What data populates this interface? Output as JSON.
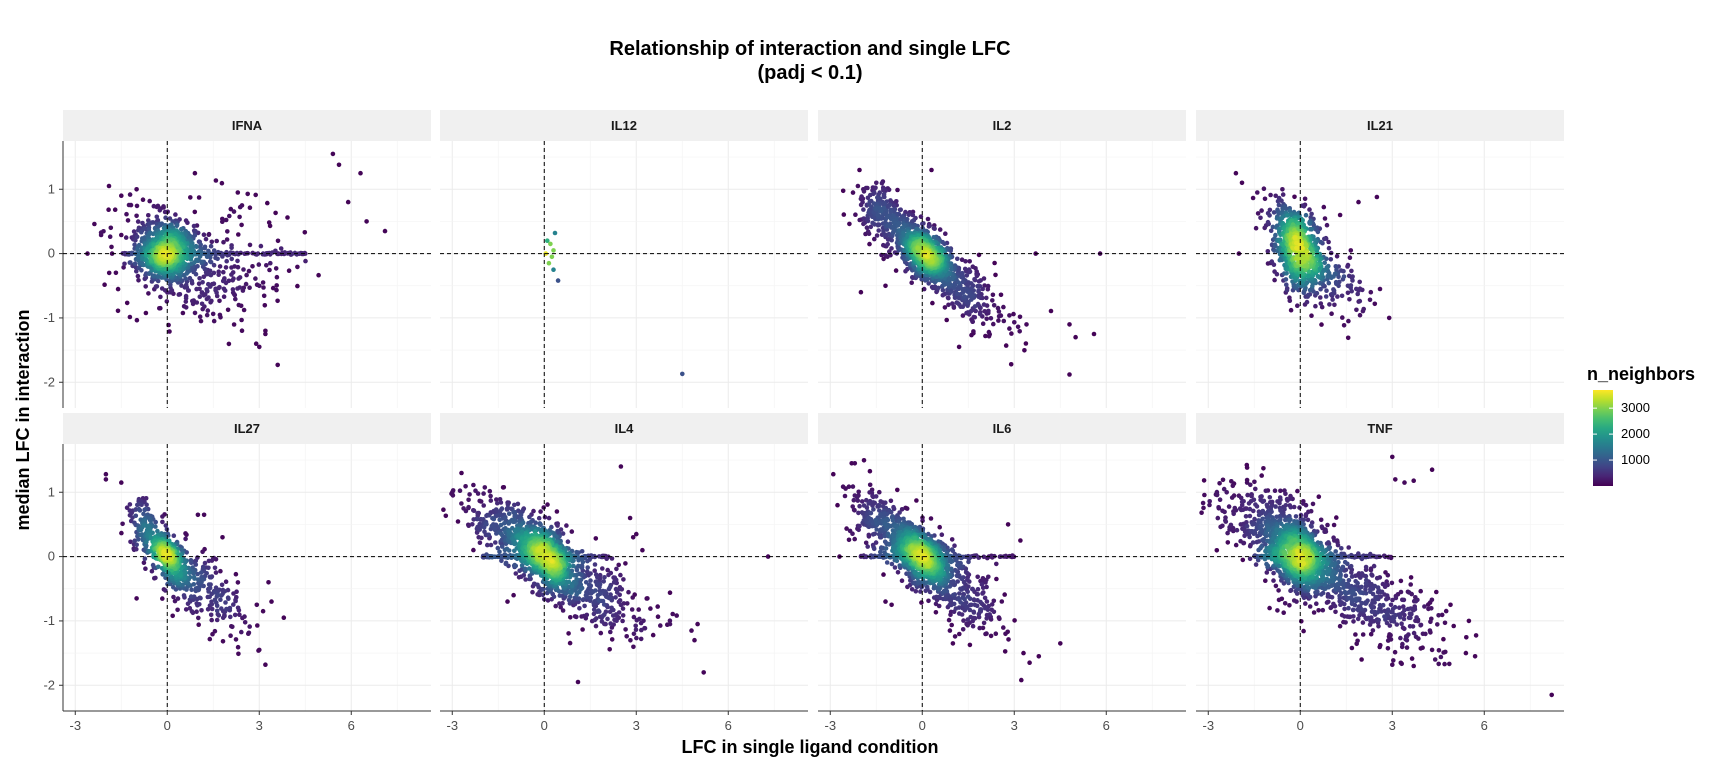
{
  "chart_data": {
    "type": "scatter",
    "title": "Relationship of interaction and single LFC",
    "subtitle": "(padj < 0.1)",
    "xlabel": "LFC in single ligand condition",
    "ylabel": "median LFC in interaction",
    "xlim": [
      -3.4,
      8.6
    ],
    "ylim": [
      -2.4,
      1.75
    ],
    "x_ticks": [
      -3,
      0,
      3,
      6
    ],
    "y_ticks": [
      -2,
      -1,
      0,
      1
    ],
    "reference_lines": {
      "x": 0,
      "y": 0,
      "style": "dashed"
    },
    "grid": true,
    "legend": {
      "title": "n_neighbors",
      "placement": "right",
      "min": 0,
      "max": 3700,
      "ticks": [
        1000,
        2000,
        3000
      ],
      "colors": [
        "#440154",
        "#3b528b",
        "#21918c",
        "#5ec962",
        "#fde725"
      ]
    },
    "panels": [
      {
        "name": "IFNA",
        "sample_points": [
          [
            -2.6,
            0
          ],
          [
            -1.9,
            1.05
          ],
          [
            -1.5,
            0.9
          ],
          [
            -1.0,
            1.0
          ],
          [
            -1.8,
            0
          ],
          [
            5.4,
            1.55
          ],
          [
            5.6,
            1.38
          ],
          [
            6.3,
            1.25
          ],
          [
            7.1,
            0.35
          ],
          [
            6.5,
            0.5
          ],
          [
            0.9,
            1.25
          ],
          [
            2.3,
            0.95
          ],
          [
            3.2,
            -1.25
          ],
          [
            3.0,
            -1.45
          ],
          [
            2.9,
            -1.4
          ],
          [
            3.6,
            -1.73
          ],
          [
            1.1,
            -1.05
          ],
          [
            3.2,
            -1.2
          ],
          [
            4.5,
            0
          ],
          [
            5.9,
            0.8
          ]
        ],
        "clusters": [
          {
            "cx": 0,
            "cy": 0,
            "sx": 0.45,
            "sy": 0.22,
            "rho": 0.0,
            "n": 700
          },
          {
            "cx": 0.9,
            "cy": -0.3,
            "sx": 1.2,
            "sy": 0.4,
            "rho": -0.2,
            "n": 260
          },
          {
            "cx": -0.5,
            "cy": 0.4,
            "sx": 0.6,
            "sy": 0.25,
            "rho": 0.0,
            "n": 80
          },
          {
            "cx": 2.5,
            "cy": 0.1,
            "sx": 1.5,
            "sy": 0.5,
            "rho": 0.0,
            "n": 60
          }
        ],
        "hlines": [
          {
            "x0": -1.5,
            "x1": 4.5,
            "n": 140
          }
        ]
      },
      {
        "name": "IL12",
        "sample_points": [
          [
            0.1,
            0.2
          ],
          [
            0.35,
            0.32
          ],
          [
            0.2,
            0.15
          ],
          [
            0.3,
            0.05
          ],
          [
            0.05,
            0
          ],
          [
            0.25,
            -0.05
          ],
          [
            0.15,
            -0.15
          ],
          [
            0.3,
            -0.25
          ],
          [
            0.45,
            -0.42
          ],
          [
            4.5,
            -1.87
          ]
        ],
        "clusters": [],
        "hlines": []
      },
      {
        "name": "IL2",
        "sample_points": [
          [
            -2.1,
            1.05
          ],
          [
            -2.0,
            0.85
          ],
          [
            0.3,
            1.3
          ],
          [
            -1.5,
            1.1
          ],
          [
            1.2,
            -1.45
          ],
          [
            2.9,
            -1.72
          ],
          [
            4.8,
            -1.88
          ],
          [
            5.0,
            -1.3
          ],
          [
            5.6,
            -1.25
          ],
          [
            5.8,
            0
          ],
          [
            3.7,
            0
          ],
          [
            4.8,
            -1.1
          ],
          [
            -2.0,
            -0.6
          ],
          [
            -1.2,
            -0.5
          ],
          [
            3.4,
            -1.1
          ],
          [
            2.5,
            -0.9
          ]
        ],
        "clusters": [
          {
            "cx": 0.15,
            "cy": 0,
            "sx": 0.4,
            "sy": 0.22,
            "rho": -0.5,
            "n": 750
          },
          {
            "cx": -0.9,
            "cy": 0.4,
            "sx": 0.55,
            "sy": 0.28,
            "rho": -0.6,
            "n": 220
          },
          {
            "cx": 1.3,
            "cy": -0.55,
            "sx": 0.8,
            "sy": 0.35,
            "rho": -0.7,
            "n": 280
          },
          {
            "cx": -1.5,
            "cy": 0.75,
            "sx": 0.35,
            "sy": 0.2,
            "rho": -0.3,
            "n": 80
          }
        ],
        "hlines": []
      },
      {
        "name": "IL21",
        "sample_points": [
          [
            -2.1,
            1.25
          ],
          [
            -1.4,
            0.95
          ],
          [
            -1.9,
            1.1
          ],
          [
            -2.0,
            0
          ],
          [
            2.5,
            0.88
          ],
          [
            1.3,
            0.6
          ],
          [
            1.9,
            0.8
          ],
          [
            2.9,
            -1.0
          ],
          [
            -0.3,
            -0.88
          ],
          [
            2.6,
            -0.55
          ],
          [
            2.3,
            -0.6
          ]
        ],
        "clusters": [
          {
            "cx": 0,
            "cy": 0,
            "sx": 0.42,
            "sy": 0.3,
            "rho": -0.2,
            "n": 550
          },
          {
            "cx": -0.5,
            "cy": 0.45,
            "sx": 0.35,
            "sy": 0.2,
            "rho": -0.3,
            "n": 120
          },
          {
            "cx": 1.0,
            "cy": -0.4,
            "sx": 0.55,
            "sy": 0.25,
            "rho": -0.4,
            "n": 130
          }
        ],
        "hlines": []
      },
      {
        "name": "IL27",
        "sample_points": [
          [
            -2.0,
            1.28
          ],
          [
            -2.0,
            1.2
          ],
          [
            -1.5,
            1.15
          ],
          [
            3.3,
            -0.4
          ],
          [
            3.4,
            -0.7
          ],
          [
            3.0,
            -1.45
          ],
          [
            3.2,
            -1.68
          ],
          [
            3.8,
            -0.95
          ],
          [
            1.8,
            0.3
          ],
          [
            1.0,
            0.65
          ],
          [
            1.2,
            0.65
          ],
          [
            -1.0,
            -0.65
          ]
        ],
        "clusters": [
          {
            "cx": 0,
            "cy": 0,
            "sx": 0.3,
            "sy": 0.2,
            "rho": -0.5,
            "n": 350
          },
          {
            "cx": -0.7,
            "cy": 0.45,
            "sx": 0.3,
            "sy": 0.22,
            "rho": -0.3,
            "n": 120
          },
          {
            "cx": 1.0,
            "cy": -0.45,
            "sx": 0.65,
            "sy": 0.3,
            "rho": -0.5,
            "n": 200
          },
          {
            "cx": 2.1,
            "cy": -1.0,
            "sx": 0.5,
            "sy": 0.25,
            "rho": -0.4,
            "n": 30
          }
        ],
        "hlines": []
      },
      {
        "name": "IL4",
        "sample_points": [
          [
            -2.7,
            1.3
          ],
          [
            -3.0,
            1.0
          ],
          [
            2.5,
            1.4
          ],
          [
            2.8,
            0.6
          ],
          [
            2.9,
            0.3
          ],
          [
            3.0,
            0.35
          ],
          [
            3.2,
            0.1
          ],
          [
            7.3,
            0
          ],
          [
            5.2,
            -1.8
          ],
          [
            5.0,
            -1.05
          ],
          [
            4.8,
            -1.15
          ],
          [
            4.9,
            -1.3
          ],
          [
            4.1,
            -1.05
          ],
          [
            2.0,
            -1.05
          ],
          [
            1.1,
            -1.95
          ],
          [
            -1.2,
            -0.7
          ],
          [
            -1.0,
            -0.6
          ]
        ],
        "clusters": [
          {
            "cx": 0.05,
            "cy": 0,
            "sx": 0.5,
            "sy": 0.28,
            "rho": -0.5,
            "n": 800
          },
          {
            "cx": -1.3,
            "cy": 0.45,
            "sx": 0.7,
            "sy": 0.3,
            "rho": -0.4,
            "n": 250
          },
          {
            "cx": 1.5,
            "cy": -0.5,
            "sx": 0.95,
            "sy": 0.35,
            "rho": -0.6,
            "n": 300
          }
        ],
        "hlines": [
          {
            "x0": -2.0,
            "x1": 2.2,
            "n": 120
          }
        ]
      },
      {
        "name": "IL6",
        "sample_points": [
          [
            -2.9,
            1.28
          ],
          [
            -2.3,
            1.45
          ],
          [
            -2.2,
            1.45
          ],
          [
            -2.7,
            0
          ],
          [
            -2.2,
            0.95
          ],
          [
            2.8,
            0.5
          ],
          [
            3.2,
            0.25
          ],
          [
            4.5,
            -1.35
          ],
          [
            3.5,
            -1.65
          ],
          [
            3.3,
            -1.5
          ],
          [
            3.8,
            -1.55
          ],
          [
            1.0,
            -1.35
          ],
          [
            1.3,
            -0.9
          ],
          [
            0.9,
            -1.15
          ],
          [
            -1.0,
            -0.75
          ],
          [
            -1.2,
            -0.7
          ]
        ],
        "clusters": [
          {
            "cx": 0,
            "cy": 0,
            "sx": 0.45,
            "sy": 0.25,
            "rho": -0.5,
            "n": 700
          },
          {
            "cx": -1.2,
            "cy": 0.45,
            "sx": 0.6,
            "sy": 0.3,
            "rho": -0.5,
            "n": 280
          },
          {
            "cx": 1.2,
            "cy": -0.55,
            "sx": 0.75,
            "sy": 0.35,
            "rho": -0.6,
            "n": 280
          }
        ],
        "hlines": [
          {
            "x0": -2.0,
            "x1": 3.0,
            "n": 150
          }
        ]
      },
      {
        "name": "TNF",
        "sample_points": [
          [
            8.2,
            -2.15
          ],
          [
            3.0,
            1.55
          ],
          [
            3.1,
            1.2
          ],
          [
            3.4,
            1.15
          ],
          [
            4.3,
            1.35
          ],
          [
            3.7,
            1.18
          ],
          [
            -2.4,
            1.0
          ],
          [
            -2.2,
            1.1
          ],
          [
            5.7,
            -1.55
          ],
          [
            5.4,
            -1.5
          ],
          [
            4.4,
            -1.6
          ],
          [
            4.3,
            -1.45
          ],
          [
            3.7,
            -1.7
          ],
          [
            3.0,
            -1.68
          ],
          [
            4.0,
            -1.2
          ],
          [
            4.9,
            -0.75
          ],
          [
            5.5,
            -1.0
          ],
          [
            -1.0,
            -0.8
          ],
          [
            2.0,
            -1.6
          ]
        ],
        "clusters": [
          {
            "cx": 0,
            "cy": 0,
            "sx": 0.5,
            "sy": 0.28,
            "rho": -0.4,
            "n": 850
          },
          {
            "cx": -1.0,
            "cy": 0.45,
            "sx": 0.9,
            "sy": 0.35,
            "rho": -0.4,
            "n": 350
          },
          {
            "cx": 1.5,
            "cy": -0.45,
            "sx": 1.1,
            "sy": 0.4,
            "rho": -0.6,
            "n": 420
          },
          {
            "cx": 3.2,
            "cy": -0.9,
            "sx": 0.8,
            "sy": 0.35,
            "rho": -0.4,
            "n": 80
          }
        ],
        "hlines": [
          {
            "x0": -1.5,
            "x1": 3.0,
            "n": 160
          }
        ]
      }
    ]
  }
}
